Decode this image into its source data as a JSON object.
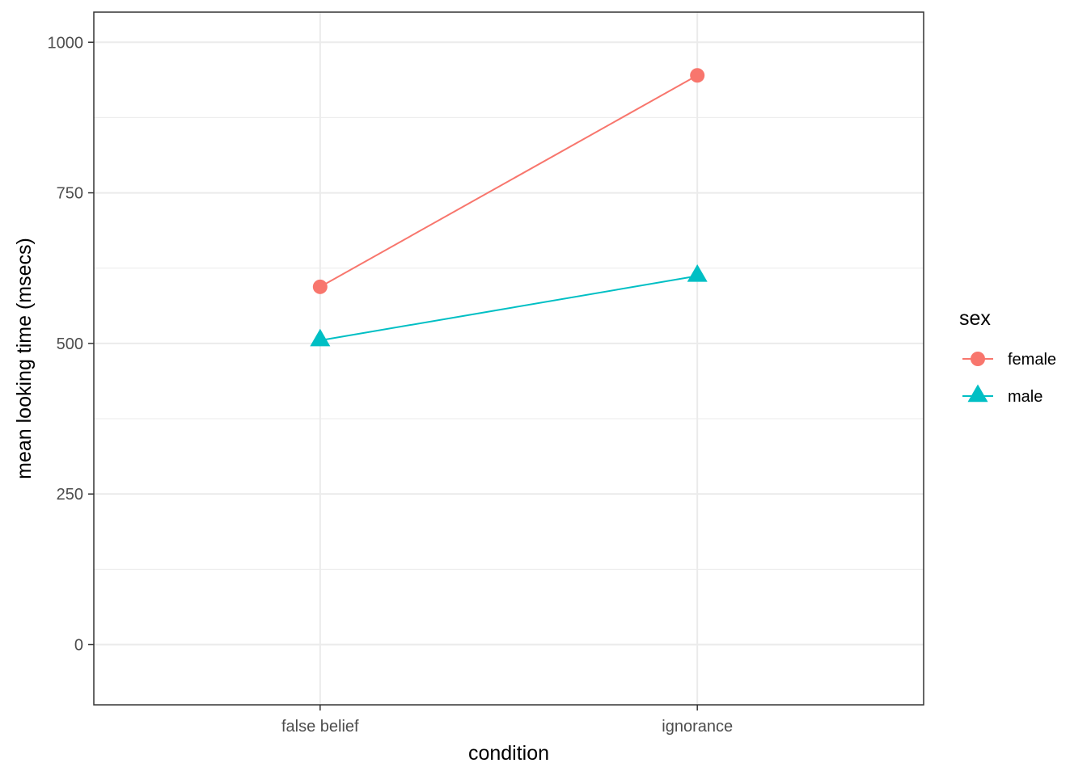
{
  "chart_data": {
    "type": "line",
    "xlabel": "condition",
    "ylabel": "mean looking time (msecs)",
    "categories": [
      "false belief",
      "ignorance"
    ],
    "ylim": [
      -100,
      1050
    ],
    "y_ticks": [
      0,
      250,
      500,
      750,
      1000
    ],
    "y_tick_labels": [
      "0",
      "250",
      "500",
      "750",
      "1000"
    ],
    "y_minor_ticks": [
      125,
      375,
      625,
      875
    ],
    "grid": true,
    "legend": {
      "title": "sex",
      "position": "right"
    },
    "series": [
      {
        "name": "female",
        "values": [
          594,
          945
        ],
        "color": "#F8766D",
        "marker": "circle"
      },
      {
        "name": "male",
        "values": [
          505,
          612
        ],
        "color": "#00BFC4",
        "marker": "triangle"
      }
    ]
  }
}
